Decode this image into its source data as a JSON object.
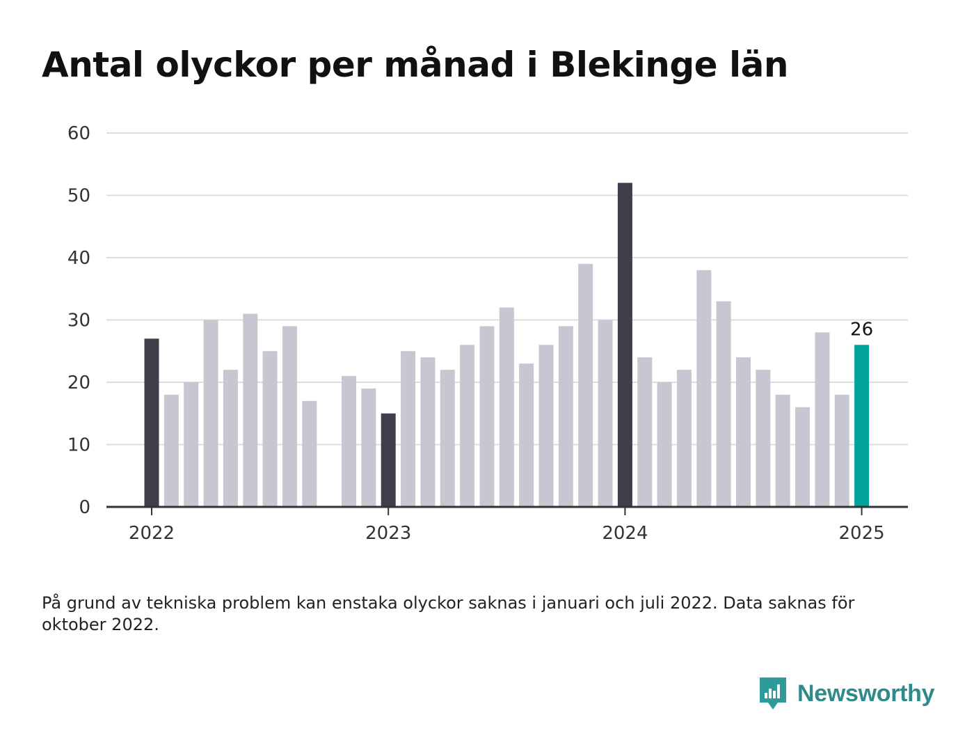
{
  "title": "Antal olyckor per månad i Blekinge län",
  "note": "På grund av tekniska problem kan enstaka olyckor saknas i januari och juli 2022. Data saknas för oktober 2022.",
  "brand": {
    "name": "Newsworthy",
    "icon": "newsworthy-logo-icon",
    "color": "#2f9a9a"
  },
  "colors": {
    "highlight": "#3f3e4a",
    "default": "#c8c7d1",
    "latest": "#00a39a",
    "grid": "#dddddd",
    "axis": "#333333"
  },
  "chart_data": {
    "type": "bar",
    "ylim": [
      0,
      60
    ],
    "yticks": [
      "0",
      "10",
      "20",
      "30",
      "40",
      "50",
      "60"
    ],
    "xticks": [
      "2022",
      "2023",
      "2024",
      "2025"
    ],
    "grid": true,
    "legend": "none",
    "categories": [
      "2022-01",
      "2022-02",
      "2022-03",
      "2022-04",
      "2022-05",
      "2022-06",
      "2022-07",
      "2022-08",
      "2022-09",
      "2022-10",
      "2022-11",
      "2022-12",
      "2023-01",
      "2023-02",
      "2023-03",
      "2023-04",
      "2023-05",
      "2023-06",
      "2023-07",
      "2023-08",
      "2023-09",
      "2023-10",
      "2023-11",
      "2023-12",
      "2024-01",
      "2024-02",
      "2024-03",
      "2024-04",
      "2024-05",
      "2024-06",
      "2024-07",
      "2024-08",
      "2024-09",
      "2024-10",
      "2024-11",
      "2024-12",
      "2025-01"
    ],
    "values": [
      27,
      18,
      20,
      30,
      22,
      31,
      25,
      29,
      17,
      null,
      21,
      19,
      15,
      25,
      24,
      22,
      26,
      29,
      32,
      23,
      26,
      29,
      39,
      30,
      52,
      24,
      20,
      22,
      38,
      33,
      24,
      22,
      18,
      16,
      28,
      18,
      26
    ],
    "highlighted": [
      "2022-01",
      "2023-01",
      "2024-01"
    ],
    "latest": "2025-01",
    "data_labels": [
      {
        "category": "2025-01",
        "text": "26"
      }
    ]
  }
}
